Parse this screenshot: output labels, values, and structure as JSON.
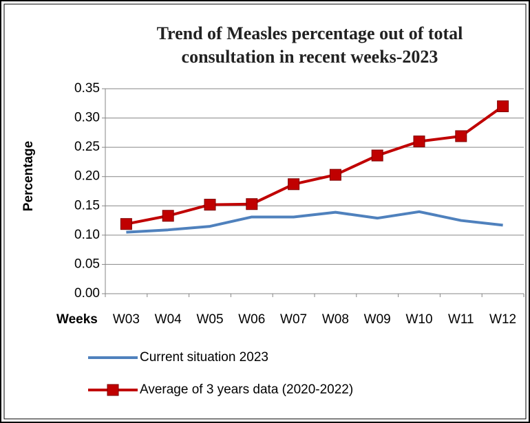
{
  "chart_data": {
    "type": "line",
    "title": "Trend of Measles percentage out of total consultation in recent weeks-2023",
    "y_label": "Percentage",
    "x_label": "Weeks",
    "categories": [
      "W03",
      "W04",
      "W05",
      "W06",
      "W07",
      "W08",
      "W09",
      "W10",
      "W11",
      "W12"
    ],
    "series": [
      {
        "name": "Current situation 2023",
        "color": "#4f81bd",
        "values": [
          0.105,
          0.109,
          0.115,
          0.131,
          0.131,
          0.139,
          0.129,
          0.14,
          0.125,
          0.117
        ]
      },
      {
        "name": "Average of 3 years data (2020-2022)",
        "color": "#c00000",
        "marker": "square",
        "values": [
          0.119,
          0.133,
          0.152,
          0.153,
          0.187,
          0.203,
          0.236,
          0.26,
          0.269,
          0.32
        ]
      }
    ],
    "ylim": [
      0,
      0.35
    ],
    "yticks": [
      {
        "value": 0,
        "label": "0.00"
      },
      0.05,
      {
        "value": 0.1,
        "label": "0.10"
      },
      0.15,
      {
        "value": 0.2,
        "label": "0.20"
      },
      0.25,
      {
        "value": 0.3,
        "label": "0.30"
      },
      0.35
    ],
    "grid": true
  }
}
